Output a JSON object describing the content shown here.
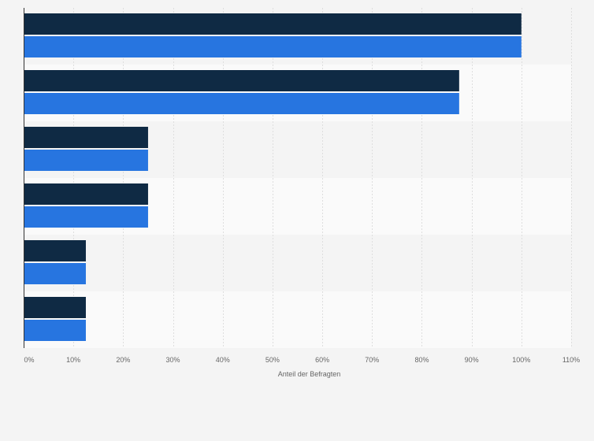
{
  "chart_data": {
    "type": "bar",
    "orientation": "horizontal",
    "categories": [
      "",
      "",
      "",
      "",
      "",
      ""
    ],
    "series": [
      {
        "color": "#0f2a44",
        "values": [
          100,
          87.5,
          25,
          25,
          12.5,
          12.5
        ]
      },
      {
        "color": "#2775e0",
        "values": [
          100,
          87.5,
          25,
          25,
          12.5,
          12.5
        ]
      }
    ],
    "xlabel": "Anteil der Befragten",
    "ylabel": "",
    "xlim": [
      0,
      110
    ],
    "ticks": [
      0,
      10,
      20,
      30,
      40,
      50,
      60,
      70,
      80,
      90,
      100,
      110
    ],
    "tick_labels": [
      "0%",
      "10%",
      "20%",
      "30%",
      "40%",
      "50%",
      "60%",
      "70%",
      "80%",
      "90%",
      "100%",
      "110%"
    ],
    "grid": true,
    "legend": "none"
  },
  "colors": {
    "band_even": "#f4f4f4",
    "band_odd": "#fafafa",
    "grid": "#dedede",
    "axis": "#333333"
  }
}
